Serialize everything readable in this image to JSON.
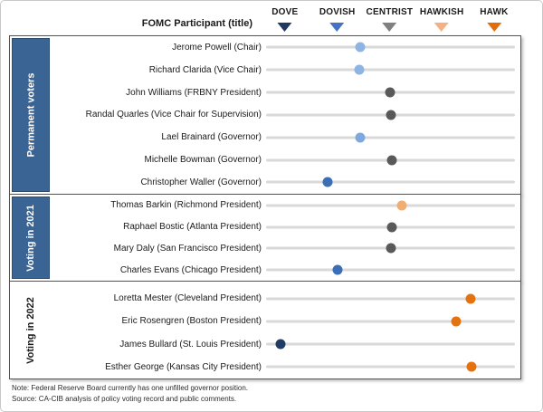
{
  "header": {
    "participant_label": "FOMC Participant (title)"
  },
  "notes": {
    "note": "Note: Federal Reserve Board currently has one unfilled  governor position.",
    "source": "Source: CA-CIB analysis of policy voting record and public comments."
  },
  "colors": {
    "sidebar_fill": "#3A6493",
    "track_line": "#D9D9D9",
    "section_border": "#555555",
    "dove": "#1F3864",
    "dovish": "#4472C4",
    "centrist": "#808080",
    "hawkish": "#F4B183",
    "hawk": "#E36C09"
  },
  "chart_data": {
    "type": "scatter",
    "description": "FOMC participants plotted on a dove-hawk policy stance scale (0 = Dove, 1 = Dovish, 2 = Centrist, 3 = Hawkish, 4 = Hawk)",
    "scale": {
      "range": [
        -0.43,
        4.4
      ],
      "categories": [
        {
          "label": "DOVE",
          "value": 0,
          "color": "#1F3864"
        },
        {
          "label": "DOVISH",
          "value": 1,
          "color": "#4472C4"
        },
        {
          "label": "CENTRIST",
          "value": 2,
          "color": "#808080"
        },
        {
          "label": "HAWKISH",
          "value": 3,
          "color": "#F4B183"
        },
        {
          "label": "HAWK",
          "value": 4,
          "color": "#E36C09"
        }
      ]
    },
    "groups": [
      {
        "label": "Permanent voters",
        "sidebar_filled": true,
        "rows": [
          {
            "name": "Jerome Powell (Chair)",
            "value": 1.39,
            "color": "#8DB4E2"
          },
          {
            "name": "Richard Clarida (Vice Chair)",
            "value": 1.38,
            "color": "#8DB4E2"
          },
          {
            "name": "John Williams (FRBNY President)",
            "value": 1.98,
            "color": "#595959"
          },
          {
            "name": "Randal Quarles (Vice Chair for Supervision)",
            "value": 1.99,
            "color": "#595959"
          },
          {
            "name": "Lael Brainard (Governor)",
            "value": 1.39,
            "color": "#7FA9DE"
          },
          {
            "name": "Michelle Bowman (Governor)",
            "value": 2.01,
            "color": "#595959"
          },
          {
            "name": "Christopher Waller (Governor)",
            "value": 0.76,
            "color": "#3A6EB5"
          }
        ]
      },
      {
        "label": "Voting in 2021",
        "sidebar_filled": true,
        "rows": [
          {
            "name": "Thomas Barkin (Richmond President)",
            "value": 2.21,
            "color": "#F0AE74"
          },
          {
            "name": "Raphael Bostic (Atlanta President)",
            "value": 2.01,
            "color": "#595959"
          },
          {
            "name": "Mary Daly (San Francisco President)",
            "value": 1.99,
            "color": "#595959"
          },
          {
            "name": "Charles Evans (Chicago President)",
            "value": 0.96,
            "color": "#3A6EB5"
          }
        ]
      },
      {
        "label": "Voting in 2022",
        "sidebar_filled": false,
        "rows": [
          {
            "name": "Loretta Mester (Cleveland President)",
            "value": 3.54,
            "color": "#E3720F"
          },
          {
            "name": "Eric Rosengren (Boston President)",
            "value": 3.26,
            "color": "#E3720F"
          },
          {
            "name": "James Bullard (St. Louis President)",
            "value": -0.15,
            "color": "#1F3B66"
          },
          {
            "name": "Esther George (Kansas City President)",
            "value": 3.56,
            "color": "#E3720F"
          }
        ]
      }
    ]
  }
}
